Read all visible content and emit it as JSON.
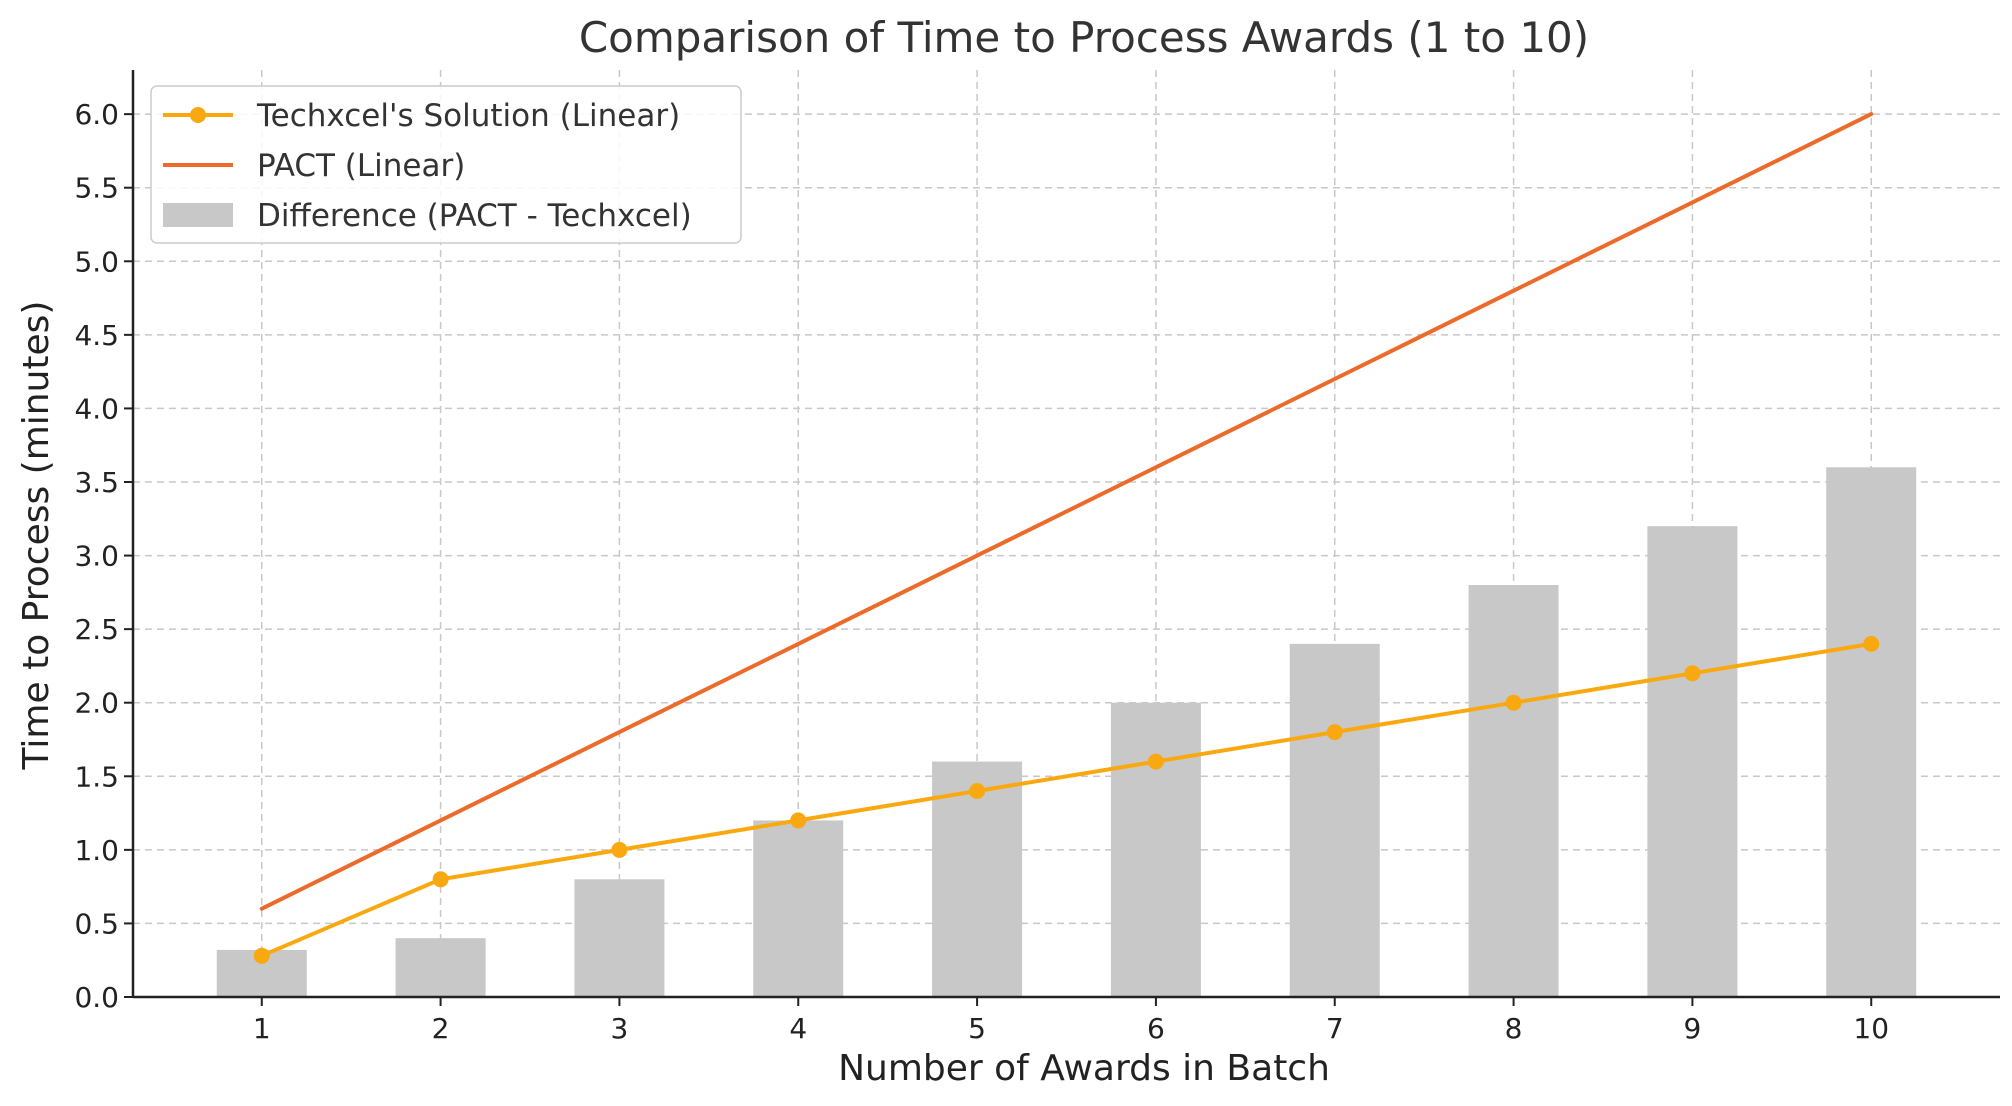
{
  "chart_data": {
    "type": "bar",
    "title": "Comparison of Time to Process Awards (1 to 10)",
    "xlabel": "Number of Awards in Batch",
    "ylabel": "Time to Process (minutes)",
    "categories": [
      1,
      2,
      3,
      4,
      5,
      6,
      7,
      8,
      9,
      10
    ],
    "x_tick_labels": [
      "1",
      "2",
      "3",
      "4",
      "5",
      "6",
      "7",
      "8",
      "9",
      "10"
    ],
    "y_ticks": [
      0.0,
      0.5,
      1.0,
      1.5,
      2.0,
      2.5,
      3.0,
      3.5,
      4.0,
      4.5,
      5.0,
      5.5,
      6.0
    ],
    "y_tick_labels": [
      "0.0",
      "0.5",
      "1.0",
      "1.5",
      "2.0",
      "2.5",
      "3.0",
      "3.5",
      "4.0",
      "4.5",
      "5.0",
      "5.5",
      "6.0"
    ],
    "ylim": [
      0,
      6.3
    ],
    "xlim": [
      0.28,
      10.72
    ],
    "grid": true,
    "legend_position": "top-left",
    "series": [
      {
        "name": "Techxcel's Solution (Linear)",
        "type": "line",
        "marker": "circle",
        "color": "#f9a90f",
        "values": [
          0.28,
          0.8,
          1.0,
          1.2,
          1.4,
          1.6,
          1.8,
          2.0,
          2.2,
          2.4
        ]
      },
      {
        "name": "PACT (Linear)",
        "type": "line",
        "marker": "none",
        "color": "#ec6a2a",
        "values": [
          0.6,
          1.2,
          1.8,
          2.4,
          3.0,
          3.6,
          4.2,
          4.8,
          5.4,
          6.0
        ]
      },
      {
        "name": "Difference (PACT - Techxcel)",
        "type": "bar",
        "color": "#c8c8c8",
        "values": [
          0.32,
          0.4,
          0.8,
          1.2,
          1.6,
          2.0,
          2.4,
          2.8,
          3.2,
          3.6
        ]
      }
    ]
  }
}
